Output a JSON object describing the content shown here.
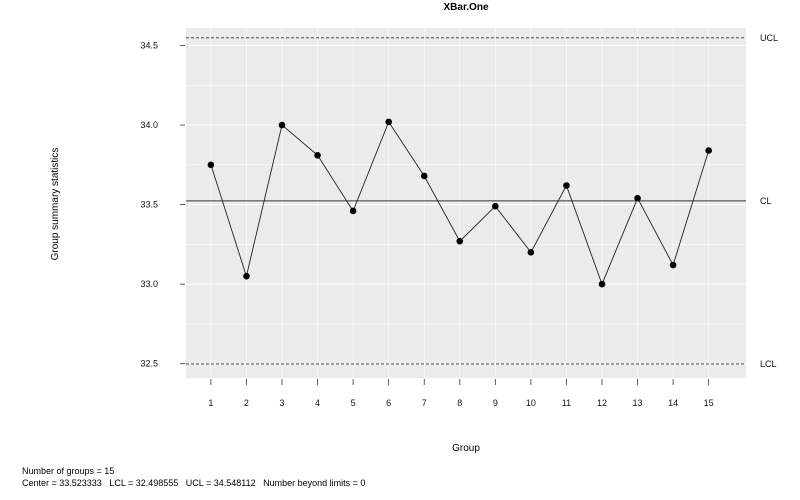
{
  "chart_data": {
    "type": "line",
    "title": "XBar.One",
    "xlabel": "Group",
    "ylabel": "Group summary statistics",
    "x": [
      1,
      2,
      3,
      4,
      5,
      6,
      7,
      8,
      9,
      10,
      11,
      12,
      13,
      14,
      15
    ],
    "x_tick_labels": [
      "1",
      "2",
      "3",
      "4",
      "5",
      "6",
      "7",
      "8",
      "9",
      "10",
      "11",
      "12",
      "13",
      "14",
      "15"
    ],
    "y": [
      33.75,
      33.05,
      34.0,
      33.81,
      33.46,
      34.02,
      33.68,
      33.27,
      33.49,
      33.2,
      33.62,
      33.0,
      33.54,
      33.12,
      33.84
    ],
    "y_ticks": [
      32.5,
      33.0,
      33.5,
      34.0,
      34.5
    ],
    "y_tick_labels": [
      "32.5",
      "33.0",
      "33.5",
      "34.0",
      "34.5"
    ],
    "xlim": [
      0.3,
      16.05
    ],
    "ylim": [
      32.41,
      34.61
    ],
    "grid": true,
    "control_limits": {
      "center": 33.523333,
      "lcl": 32.498555,
      "ucl": 34.548112,
      "center_label": "CL",
      "lcl_label": "LCL",
      "ucl_label": "UCL"
    }
  },
  "footer": {
    "line1": "Number of groups = 15",
    "line2": "Center = 33.523333   LCL = 32.498555   UCL = 34.548112   Number beyond limits = 0"
  }
}
